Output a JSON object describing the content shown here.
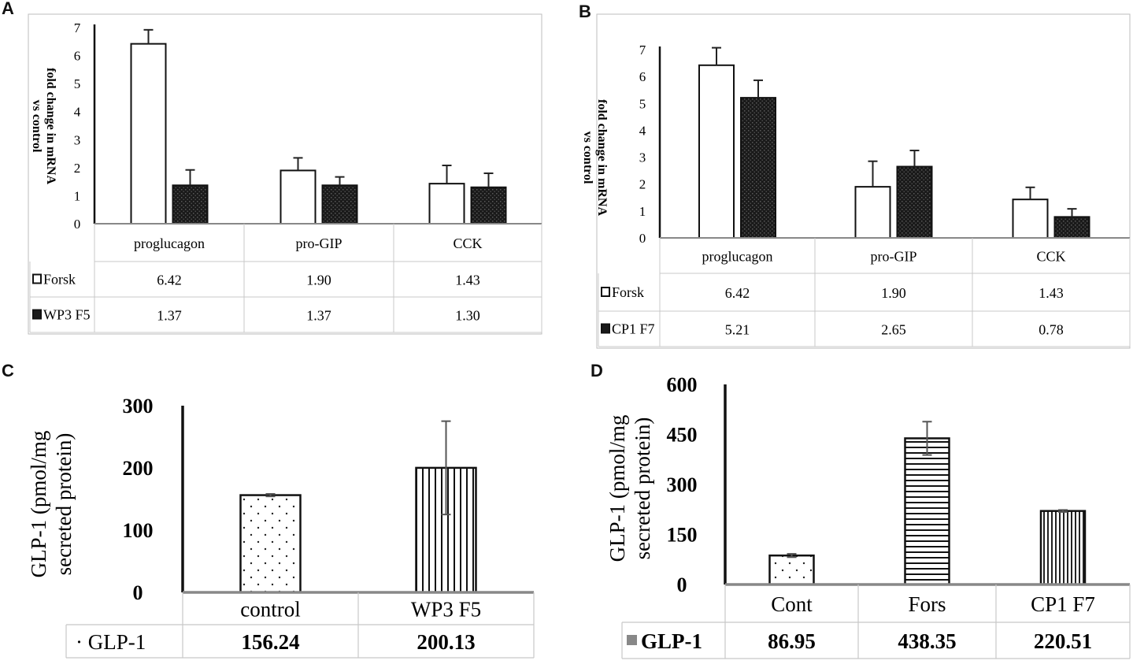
{
  "panels": {
    "A": "A",
    "B": "B",
    "C": "C",
    "D": "D"
  },
  "chart_data": [
    {
      "panel": "A",
      "type": "bar",
      "ylabel": "fold change in mRNA vs control",
      "ylim": [
        0,
        7
      ],
      "yticks": [
        "0",
        "1",
        "2",
        "3",
        "4",
        "5",
        "6",
        "7"
      ],
      "categories": [
        "proglucagon",
        "pro-GIP",
        "CCK"
      ],
      "series": [
        {
          "name": "Forsk",
          "values": [
            6.42,
            1.9,
            1.43
          ],
          "errors": [
            0.5,
            0.45,
            0.65
          ],
          "labels": [
            "6.42",
            "1.90",
            "1.43"
          ],
          "color": "#ffffff"
        },
        {
          "name": "WP3 F5",
          "values": [
            1.37,
            1.37,
            1.3
          ],
          "errors": [
            0.55,
            0.3,
            0.5
          ],
          "labels": [
            "1.37",
            "1.37",
            "1.30"
          ],
          "color": "#1c1c1c"
        }
      ]
    },
    {
      "panel": "B",
      "type": "bar",
      "ylabel": "fold change in mRNA vs control",
      "ylim": [
        0,
        7
      ],
      "yticks": [
        "0",
        "1",
        "2",
        "3",
        "4",
        "5",
        "6",
        "7"
      ],
      "categories": [
        "proglucagon",
        "pro-GIP",
        "CCK"
      ],
      "series": [
        {
          "name": "Forsk",
          "values": [
            6.42,
            1.9,
            1.43
          ],
          "errors": [
            0.65,
            0.95,
            0.45
          ],
          "labels": [
            "6.42",
            "1.90",
            "1.43"
          ],
          "color": "#ffffff"
        },
        {
          "name": "CP1 F7",
          "values": [
            5.21,
            2.65,
            0.78
          ],
          "errors": [
            0.65,
            0.6,
            0.3
          ],
          "labels": [
            "5.21",
            "2.65",
            "0.78"
          ],
          "color": "#1c1c1c"
        }
      ]
    },
    {
      "panel": "C",
      "type": "bar",
      "ylabel": "GLP-1 (pmol/mg secreted protein)",
      "ylabel_lines": [
        "GLP-1 (pmol/mg",
        "secreted protein)"
      ],
      "ylim": [
        0,
        300
      ],
      "yticks": [
        "0",
        "100",
        "200",
        "300"
      ],
      "categories": [
        "control",
        "WP3  F5"
      ],
      "series": [
        {
          "name": "GLP-1",
          "legend_text": "· GLP-1",
          "values": [
            156.24,
            200.13
          ],
          "errors": [
            2,
            75
          ],
          "labels": [
            "156.24",
            "200.13"
          ],
          "patterns": [
            "dots",
            "vlines"
          ]
        }
      ]
    },
    {
      "panel": "D",
      "type": "bar",
      "ylabel": "GLP-1 (pmol/mg secreted protein)",
      "ylabel_lines": [
        "GLP-1 (pmol/mg",
        "secreted protein)"
      ],
      "ylim": [
        0,
        600
      ],
      "yticks": [
        "0",
        "150",
        "300",
        "450",
        "600"
      ],
      "categories": [
        "Cont",
        "Fors",
        "CP1 F7"
      ],
      "series": [
        {
          "name": "GLP-1",
          "values": [
            86.95,
            438.35,
            220.51
          ],
          "errors": [
            5,
            50,
            3
          ],
          "labels": [
            "86.95",
            "438.35",
            "220.51"
          ],
          "patterns": [
            "dots",
            "hlines",
            "vlines"
          ]
        }
      ]
    }
  ]
}
